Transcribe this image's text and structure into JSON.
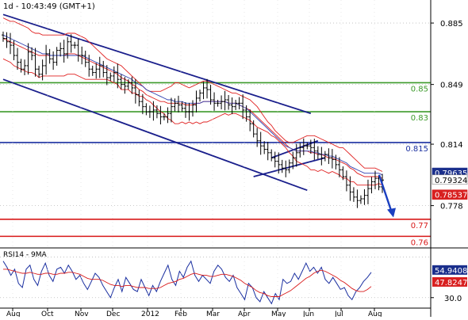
{
  "header": {
    "title": "1d - 10:43:49 (GMT+1)"
  },
  "colors": {
    "price": "#000000",
    "bollinger": "#e02020",
    "ma": "#2f3fb0",
    "channel": "#1a1f8c",
    "support_green": "#3c9a2a",
    "support_red": "#d81818",
    "level_blue": "#1a2fa0",
    "rsi": "#1a2fa0",
    "rsi_ma": "#d81818",
    "arrow": "#1a3fc0",
    "badge_blue": "#1a2f8c",
    "badge_red": "#d82020"
  },
  "chart_data": [
    {
      "type": "candlestick",
      "title": "",
      "ylim": [
        0.756,
        0.892
      ],
      "yticks": [
        {
          "value": 0.885,
          "label": "0.885"
        },
        {
          "value": 0.849,
          "label": "0.849"
        },
        {
          "value": 0.814,
          "label": "0.814"
        },
        {
          "value": 0.778,
          "label": "0.778"
        }
      ],
      "xticks": [
        "Aug",
        "Oct",
        "Nov",
        "Dec",
        "2012",
        "Feb",
        "Mar",
        "Apr",
        "May",
        "Jun",
        "Jul",
        "Aug"
      ],
      "horizontal_levels": [
        {
          "value": 0.85,
          "label": "0.85",
          "color": "green"
        },
        {
          "value": 0.833,
          "label": "0.83",
          "color": "green"
        },
        {
          "value": 0.815,
          "label": "0.815",
          "color": "blue"
        },
        {
          "value": 0.77,
          "label": "0.77",
          "color": "red"
        },
        {
          "value": 0.76,
          "label": "0.76",
          "color": "red"
        }
      ],
      "price_badges": [
        {
          "value": 0.79635,
          "label": "0.79635",
          "style": "blue"
        },
        {
          "value": 0.79324,
          "label": "0.79324",
          "style": "plain"
        },
        {
          "value": 0.78537,
          "label": "0.78537",
          "style": "red"
        }
      ],
      "close": [
        0.876,
        0.874,
        0.872,
        0.866,
        0.862,
        0.858,
        0.86,
        0.868,
        0.866,
        0.858,
        0.855,
        0.86,
        0.867,
        0.864,
        0.862,
        0.869,
        0.87,
        0.867,
        0.874,
        0.872,
        0.872,
        0.866,
        0.866,
        0.862,
        0.858,
        0.856,
        0.858,
        0.86,
        0.856,
        0.853,
        0.854,
        0.856,
        0.852,
        0.849,
        0.848,
        0.85,
        0.847,
        0.843,
        0.839,
        0.836,
        0.833,
        0.833,
        0.834,
        0.832,
        0.83,
        0.83,
        0.832,
        0.836,
        0.838,
        0.837,
        0.835,
        0.833,
        0.833,
        0.837,
        0.841,
        0.844,
        0.847,
        0.846,
        0.84,
        0.838,
        0.838,
        0.839,
        0.84,
        0.837,
        0.836,
        0.838,
        0.838,
        0.834,
        0.83,
        0.826,
        0.82,
        0.816,
        0.813,
        0.811,
        0.809,
        0.806,
        0.804,
        0.802,
        0.8,
        0.799,
        0.803,
        0.806,
        0.809,
        0.812,
        0.813,
        0.813,
        0.812,
        0.81,
        0.808,
        0.806,
        0.808,
        0.806,
        0.805,
        0.802,
        0.799,
        0.795,
        0.79,
        0.786,
        0.783,
        0.781,
        0.782,
        0.784,
        0.788,
        0.792,
        0.794,
        0.789,
        0.793
      ],
      "bollinger": {
        "upper": [
          0.888,
          0.887,
          0.886,
          0.886,
          0.885,
          0.884,
          0.883,
          0.882,
          0.88,
          0.879,
          0.879,
          0.878,
          0.878,
          0.878,
          0.878,
          0.878,
          0.878,
          0.878,
          0.879,
          0.879,
          0.879,
          0.878,
          0.877,
          0.876,
          0.874,
          0.872,
          0.87,
          0.868,
          0.866,
          0.864,
          0.863,
          0.862,
          0.861,
          0.86,
          0.858,
          0.856,
          0.854,
          0.852,
          0.85,
          0.848,
          0.846,
          0.845,
          0.845,
          0.845,
          0.845,
          0.846,
          0.847,
          0.848,
          0.85,
          0.85,
          0.849,
          0.848,
          0.847,
          0.848,
          0.849,
          0.85,
          0.851,
          0.851,
          0.85,
          0.849,
          0.848,
          0.847,
          0.846,
          0.845,
          0.844,
          0.844,
          0.843,
          0.842,
          0.841,
          0.84,
          0.838,
          0.836,
          0.833,
          0.83,
          0.827,
          0.825,
          0.822,
          0.82,
          0.818,
          0.816,
          0.815,
          0.815,
          0.816,
          0.817,
          0.818,
          0.819,
          0.819,
          0.819,
          0.818,
          0.817,
          0.816,
          0.815,
          0.814,
          0.813,
          0.812,
          0.812,
          0.81,
          0.808,
          0.806,
          0.804,
          0.802,
          0.8,
          0.8,
          0.8,
          0.8,
          0.799,
          0.798
        ],
        "middle": [
          0.876,
          0.875,
          0.874,
          0.873,
          0.872,
          0.871,
          0.87,
          0.869,
          0.868,
          0.867,
          0.866,
          0.866,
          0.866,
          0.866,
          0.866,
          0.866,
          0.866,
          0.866,
          0.867,
          0.867,
          0.867,
          0.866,
          0.865,
          0.864,
          0.863,
          0.862,
          0.861,
          0.86,
          0.859,
          0.858,
          0.857,
          0.856,
          0.855,
          0.853,
          0.852,
          0.851,
          0.849,
          0.848,
          0.846,
          0.845,
          0.843,
          0.842,
          0.841,
          0.84,
          0.839,
          0.839,
          0.838,
          0.838,
          0.838,
          0.838,
          0.838,
          0.837,
          0.837,
          0.837,
          0.838,
          0.838,
          0.839,
          0.839,
          0.839,
          0.839,
          0.839,
          0.839,
          0.839,
          0.838,
          0.838,
          0.838,
          0.837,
          0.836,
          0.835,
          0.834,
          0.832,
          0.83,
          0.828,
          0.826,
          0.824,
          0.822,
          0.82,
          0.818,
          0.816,
          0.814,
          0.812,
          0.811,
          0.81,
          0.81,
          0.81,
          0.81,
          0.809,
          0.809,
          0.808,
          0.808,
          0.807,
          0.806,
          0.806,
          0.805,
          0.804,
          0.803,
          0.802,
          0.8,
          0.799,
          0.797,
          0.796,
          0.795,
          0.795,
          0.795,
          0.795,
          0.795,
          0.794
        ],
        "lower": [
          0.864,
          0.863,
          0.862,
          0.86,
          0.859,
          0.858,
          0.857,
          0.856,
          0.856,
          0.855,
          0.853,
          0.854,
          0.854,
          0.854,
          0.854,
          0.854,
          0.854,
          0.854,
          0.855,
          0.855,
          0.855,
          0.854,
          0.853,
          0.852,
          0.852,
          0.852,
          0.852,
          0.852,
          0.852,
          0.852,
          0.851,
          0.85,
          0.849,
          0.846,
          0.846,
          0.846,
          0.844,
          0.844,
          0.842,
          0.842,
          0.84,
          0.839,
          0.837,
          0.835,
          0.833,
          0.832,
          0.829,
          0.828,
          0.826,
          0.826,
          0.827,
          0.826,
          0.827,
          0.826,
          0.827,
          0.826,
          0.827,
          0.827,
          0.828,
          0.829,
          0.83,
          0.831,
          0.832,
          0.831,
          0.832,
          0.832,
          0.831,
          0.83,
          0.829,
          0.828,
          0.826,
          0.824,
          0.823,
          0.822,
          0.821,
          0.819,
          0.818,
          0.816,
          0.814,
          0.812,
          0.809,
          0.807,
          0.804,
          0.803,
          0.802,
          0.801,
          0.799,
          0.799,
          0.798,
          0.799,
          0.798,
          0.797,
          0.798,
          0.797,
          0.796,
          0.794,
          0.794,
          0.792,
          0.792,
          0.79,
          0.79,
          0.79,
          0.79,
          0.79,
          0.79,
          0.791,
          0.79
        ]
      },
      "moving_average": [
        0.878,
        0.877,
        0.876,
        0.875,
        0.874,
        0.873,
        0.872,
        0.871,
        0.87,
        0.869,
        0.868,
        0.867,
        0.867,
        0.866,
        0.866,
        0.866,
        0.866,
        0.866,
        0.866,
        0.866,
        0.866,
        0.866,
        0.866,
        0.865,
        0.864,
        0.863,
        0.862,
        0.861,
        0.86,
        0.859,
        0.858,
        0.857,
        0.856,
        0.855,
        0.854,
        0.853,
        0.852,
        0.85,
        0.849,
        0.848,
        0.846,
        0.845,
        0.844,
        0.843,
        0.842,
        0.841,
        0.84,
        0.84,
        0.839,
        0.839,
        0.839,
        0.838,
        0.838,
        0.838,
        0.838,
        0.838,
        0.839,
        0.839,
        0.839,
        0.839,
        0.839,
        0.839,
        0.839,
        0.838,
        0.838,
        0.838,
        0.837,
        0.836,
        0.835,
        0.833,
        0.831,
        0.829,
        0.827,
        0.825,
        0.823,
        0.821,
        0.819,
        0.817,
        0.815,
        0.813,
        0.812,
        0.811,
        0.81,
        0.81,
        0.81,
        0.81,
        0.81,
        0.809,
        0.809,
        0.808,
        0.808,
        0.807,
        0.807,
        0.806,
        0.805,
        0.804,
        0.803,
        0.801,
        0.8,
        0.799,
        0.798,
        0.797,
        0.797,
        0.797,
        0.797,
        0.797,
        0.796
      ],
      "trend_lines": [
        {
          "name": "channel-upper",
          "from": [
            0,
            0.89
          ],
          "to": [
            86,
            0.832
          ]
        },
        {
          "name": "channel-lower",
          "from": [
            0,
            0.852
          ],
          "to": [
            85,
            0.787
          ]
        },
        {
          "name": "flag-upper",
          "from": [
            75,
            0.806
          ],
          "to": [
            88,
            0.816
          ]
        },
        {
          "name": "flag-lower",
          "from": [
            70,
            0.795
          ],
          "to": [
            90,
            0.806
          ]
        }
      ]
    },
    {
      "type": "line",
      "title": "RSI14 - 9MA",
      "ylim": [
        22,
        72
      ],
      "yticks": [
        {
          "value": 30.0,
          "label": "30.0"
        }
      ],
      "series": [
        {
          "name": "RSI14",
          "values": [
            66,
            60,
            52,
            58,
            44,
            40,
            58,
            62,
            48,
            42,
            56,
            64,
            52,
            46,
            58,
            60,
            54,
            62,
            56,
            48,
            52,
            44,
            38,
            46,
            54,
            50,
            42,
            36,
            30,
            40,
            48,
            36,
            50,
            44,
            38,
            36,
            48,
            40,
            32,
            42,
            36,
            46,
            54,
            62,
            48,
            42,
            56,
            50,
            60,
            66,
            52,
            46,
            52,
            48,
            44,
            56,
            62,
            58,
            50,
            46,
            52,
            40,
            34,
            28,
            44,
            40,
            30,
            26,
            36,
            30,
            24,
            34,
            28,
            48,
            44,
            46,
            54,
            48,
            56,
            64,
            56,
            60,
            54,
            60,
            48,
            44,
            50,
            44,
            38,
            40,
            32,
            28,
            36,
            40,
            46,
            50,
            55
          ]
        },
        {
          "name": "9MA",
          "values": [
            58,
            58,
            57,
            56,
            55,
            54,
            54,
            55,
            54,
            53,
            53,
            54,
            54,
            53,
            53,
            54,
            54,
            55,
            55,
            54,
            53,
            51,
            49,
            48,
            48,
            48,
            47,
            45,
            43,
            42,
            42,
            41,
            42,
            42,
            41,
            40,
            40,
            40,
            39,
            39,
            39,
            40,
            42,
            44,
            45,
            46,
            48,
            49,
            51,
            53,
            54,
            53,
            52,
            52,
            51,
            51,
            52,
            53,
            53,
            52,
            51,
            49,
            47,
            44,
            42,
            40,
            37,
            35,
            34,
            32,
            31,
            31,
            31,
            33,
            35,
            37,
            40,
            43,
            46,
            49,
            51,
            54,
            56,
            57,
            56,
            54,
            52,
            50,
            47,
            45,
            42,
            39,
            37,
            36,
            36,
            38,
            41
          ]
        }
      ],
      "badges": [
        {
          "value": 54.9408,
          "label": "54.9408",
          "style": "blue"
        },
        {
          "value": 47.8247,
          "label": "47.8247",
          "style": "red"
        }
      ]
    }
  ]
}
